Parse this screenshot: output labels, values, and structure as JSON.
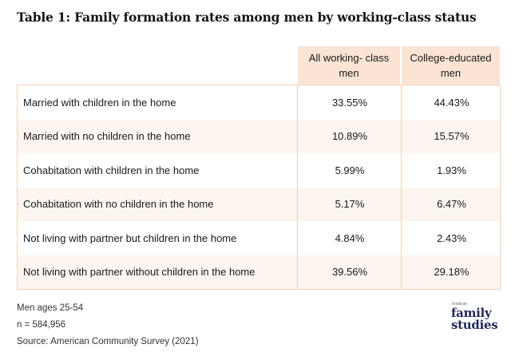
{
  "title": "Table 1: Family formation rates among men by working-class status",
  "table": {
    "columns": [
      "All working- class men",
      "College-educated men"
    ],
    "rows": [
      {
        "label": "Married with children in the home",
        "working_class": "33.55%",
        "college": "44.43%"
      },
      {
        "label": "Married with no children in the home",
        "working_class": "10.89%",
        "college": "15.57%"
      },
      {
        "label": "Cohabitation with children in the home",
        "working_class": "5.99%",
        "college": "1.93%"
      },
      {
        "label": "Cohabitation with no children in the home",
        "working_class": "5.17%",
        "college": "6.47%"
      },
      {
        "label": "Not living with partner but children in the home",
        "working_class": "4.84%",
        "college": "2.43%"
      },
      {
        "label": "Not living with partner without children in the home",
        "working_class": "39.56%",
        "college": "29.18%"
      }
    ]
  },
  "notes": [
    "Men ages 25-54",
    "n = 584,956",
    "Source: American Community Survey (2021)"
  ],
  "logo": {
    "small": "Institute",
    "line1": "family",
    "line2": "studies"
  },
  "colors": {
    "header_bg": "#fbe4d3",
    "alt_row_bg": "#fdf5ef",
    "border": "#f3d2bb",
    "logo": "#222a5a"
  }
}
